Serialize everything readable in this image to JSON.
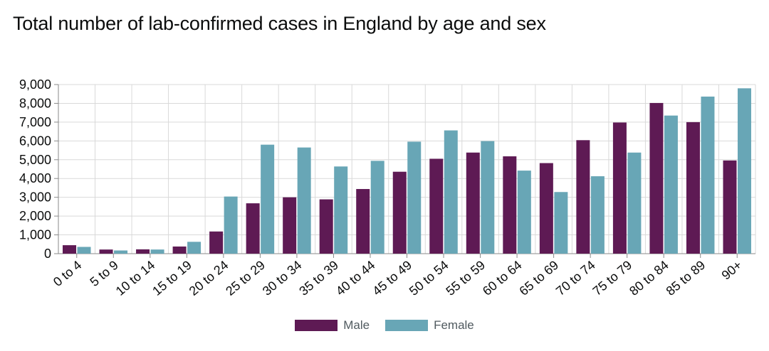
{
  "title": "Total number of lab-confirmed cases in England by age and sex",
  "colors": {
    "male": "#5e1a54",
    "female": "#68a6b6",
    "grid": "#d9d9d9",
    "axis": "#8a8a8a"
  },
  "legend": {
    "male_label": "Male",
    "female_label": "Female"
  },
  "chart_data": {
    "type": "bar",
    "title": "Total number of lab-confirmed cases in England by age and sex",
    "xlabel": "",
    "ylabel": "",
    "ylim": [
      0,
      9000
    ],
    "yticks": [
      0,
      1000,
      2000,
      3000,
      4000,
      5000,
      6000,
      7000,
      8000,
      9000
    ],
    "ytick_labels": [
      "0",
      "1,000",
      "2,000",
      "3,000",
      "4,000",
      "5,000",
      "6,000",
      "7,000",
      "8,000",
      "9,000"
    ],
    "categories": [
      "0 to 4",
      "5 to 9",
      "10 to 14",
      "15 to 19",
      "20 to 24",
      "25 to 29",
      "30 to 34",
      "35 to 39",
      "40 to 44",
      "45 to 49",
      "50 to 54",
      "55 to 59",
      "60 to 64",
      "65 to 69",
      "70 to 74",
      "75 to 79",
      "80 to 84",
      "85 to 89",
      "90+"
    ],
    "series": [
      {
        "name": "Male",
        "values": [
          450,
          220,
          230,
          380,
          1180,
          2680,
          3000,
          2890,
          3440,
          4360,
          5050,
          5380,
          5180,
          4820,
          6040,
          6980,
          8020,
          7000,
          4960
        ]
      },
      {
        "name": "Female",
        "values": [
          360,
          170,
          220,
          630,
          3040,
          5800,
          5650,
          4640,
          4940,
          5960,
          6560,
          5990,
          4420,
          3280,
          4120,
          5380,
          7350,
          8360,
          8800
        ]
      }
    ],
    "legend_position": "bottom-center",
    "grid": true
  }
}
